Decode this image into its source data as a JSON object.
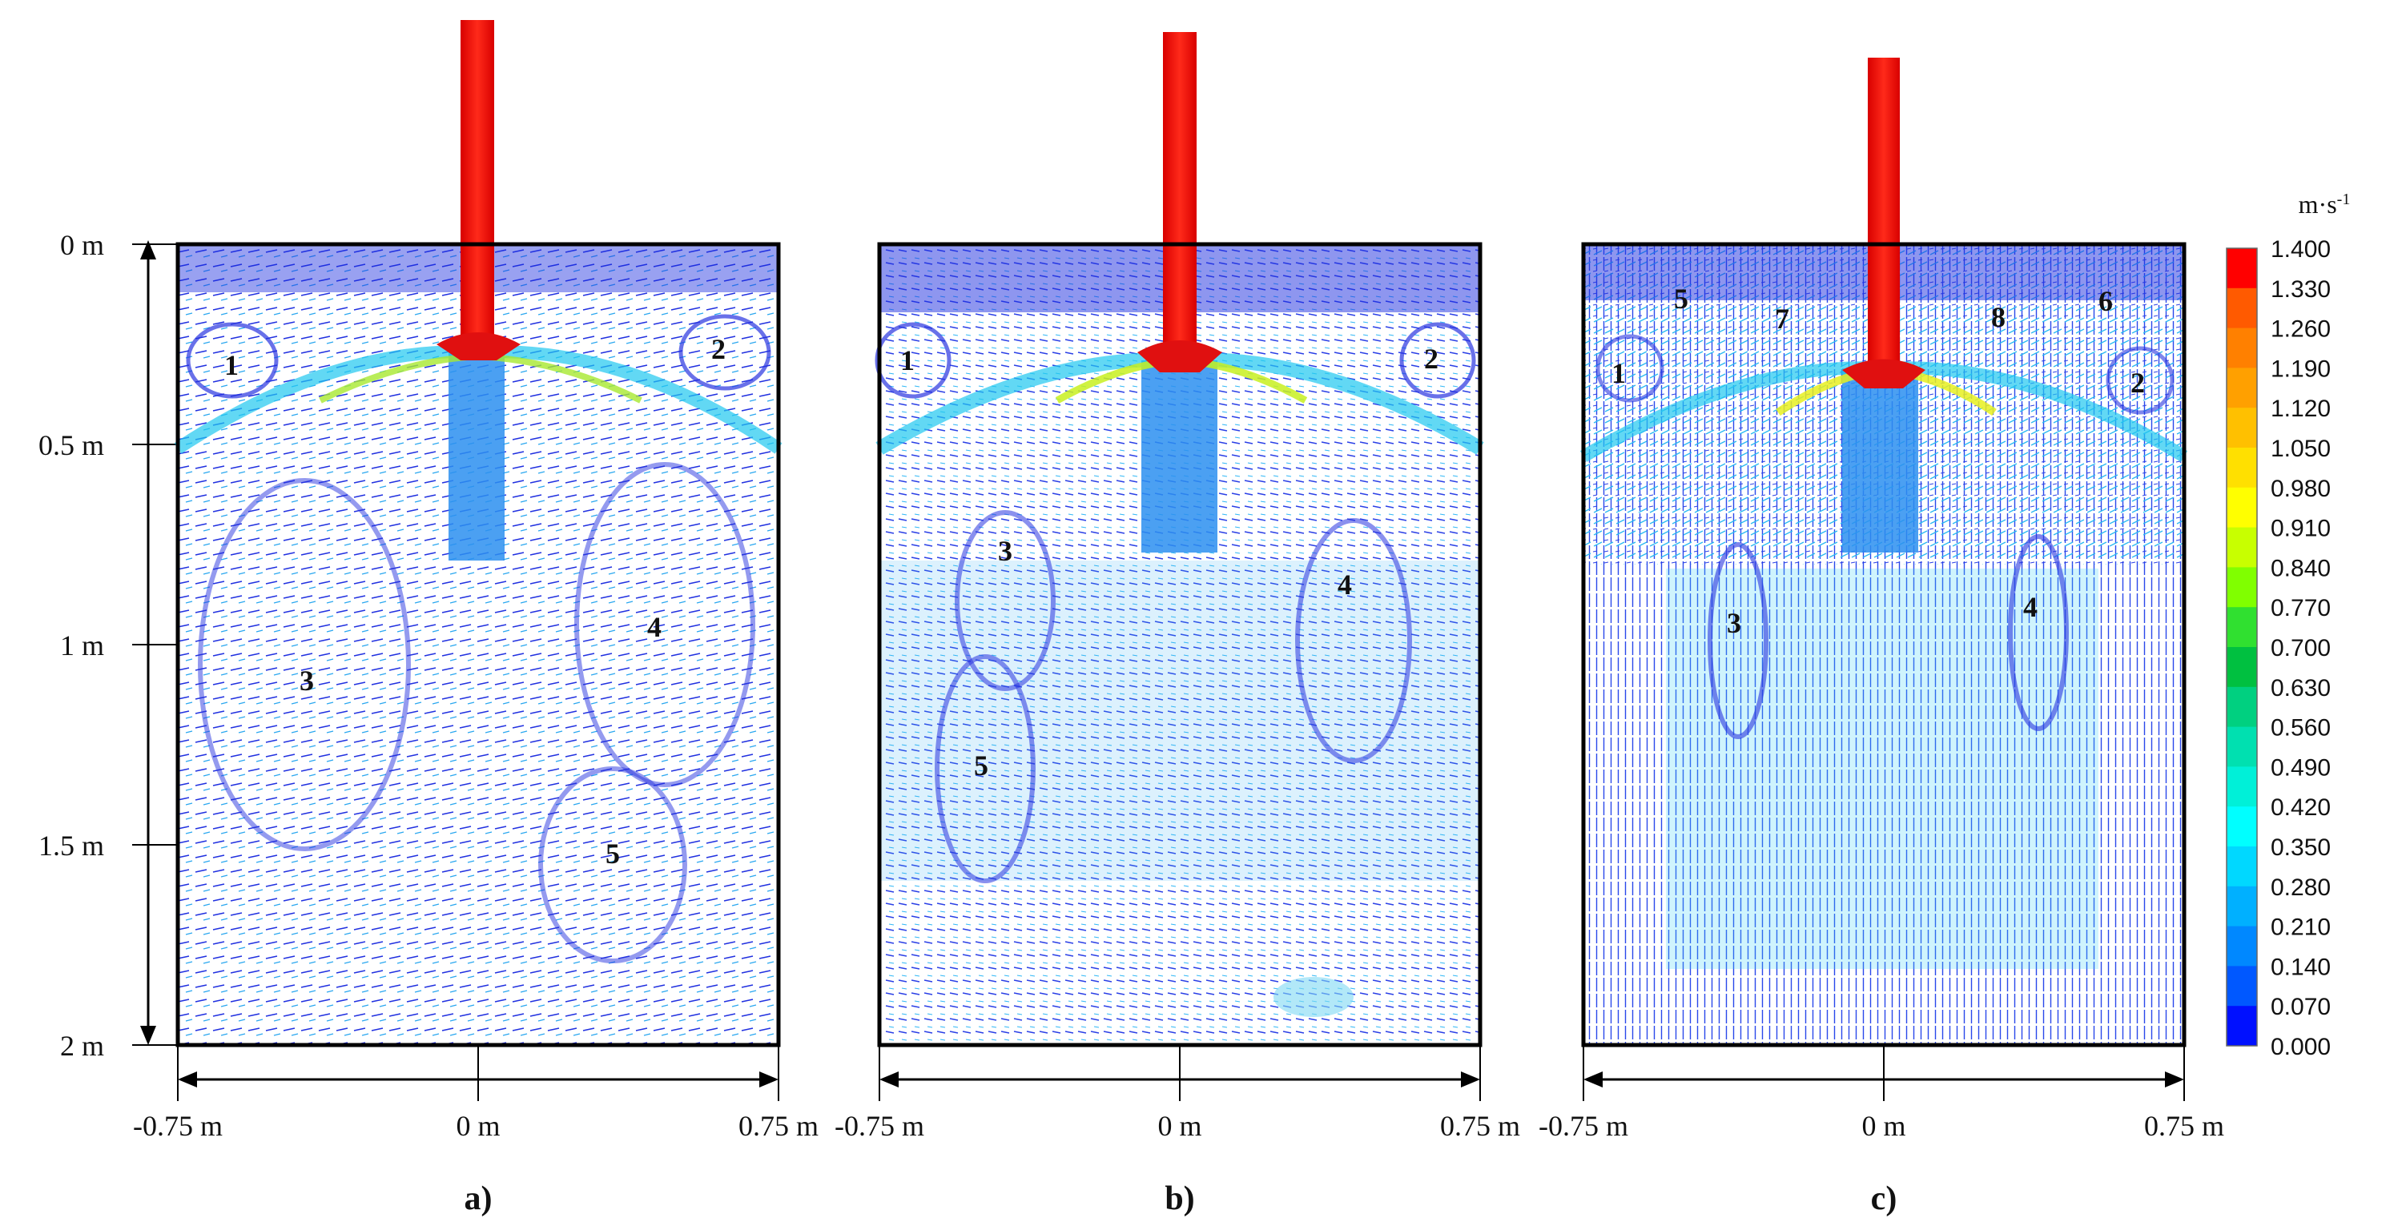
{
  "y_axis_ticks": [
    "0 m",
    "0.5 m",
    "1 m",
    "1.5 m",
    "2 m"
  ],
  "x_axis_ticks": [
    "-0.75 m",
    "0 m",
    "0.75 m"
  ],
  "panels": [
    {
      "label": "a)",
      "vortex_labels": [
        "1",
        "2",
        "3",
        "4",
        "5"
      ]
    },
    {
      "label": "b)",
      "vortex_labels": [
        "1",
        "2",
        "3",
        "4",
        "5"
      ]
    },
    {
      "label": "c)",
      "vortex_labels": [
        "1",
        "2",
        "3",
        "4",
        "5",
        "6",
        "7",
        "8"
      ]
    }
  ],
  "colorbar": {
    "unit": "m·s",
    "unit_exponent": "-1",
    "ticks": [
      "1.400",
      "1.330",
      "1.260",
      "1.190",
      "1.120",
      "1.050",
      "0.980",
      "0.910",
      "0.840",
      "0.770",
      "0.700",
      "0.630",
      "0.560",
      "0.490",
      "0.420",
      "0.350",
      "0.280",
      "0.210",
      "0.140",
      "0.070",
      "0.000"
    ],
    "colors": [
      "#ff0000",
      "#ff5a00",
      "#ff8000",
      "#ffa000",
      "#ffc000",
      "#ffe000",
      "#ffff00",
      "#c8ff00",
      "#80ff00",
      "#30e030",
      "#00c040",
      "#00d080",
      "#00e0b0",
      "#00f0d8",
      "#00ffff",
      "#00d8ff",
      "#00b0ff",
      "#0088ff",
      "#0058ff",
      "#0010ff"
    ]
  }
}
